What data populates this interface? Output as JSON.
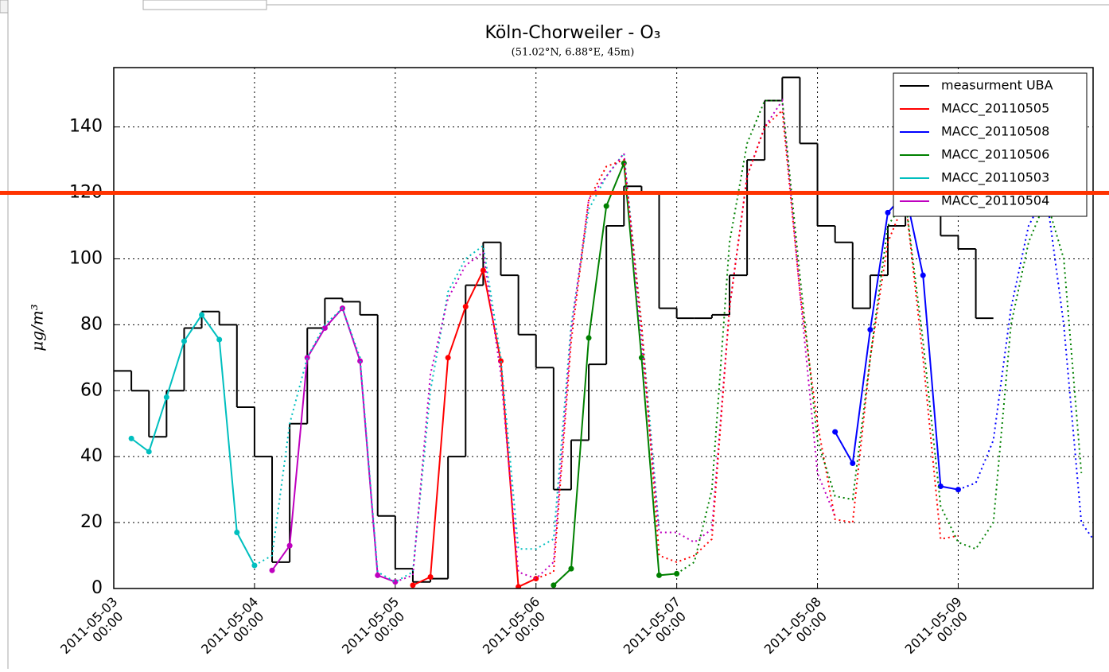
{
  "chart_data": {
    "type": "line",
    "title": "Köln-Chorweiler - O₃",
    "subtitle": "(51.02°N, 6.88°E, 45m)",
    "y_label": "μg/m³",
    "xlim": [
      "2011-05-03 00:00",
      "2011-05-09 23:00"
    ],
    "xticks": [
      "2011-05-03 00:00",
      "2011-05-04 00:00",
      "2011-05-05 00:00",
      "2011-05-06 00:00",
      "2011-05-07 00:00",
      "2011-05-08 00:00",
      "2011-05-09 00:00"
    ],
    "ylim": [
      0,
      158
    ],
    "yticks": [
      0,
      20,
      40,
      60,
      80,
      100,
      120,
      140
    ],
    "grid": true,
    "legend": "upper right",
    "hline": {
      "value": 120,
      "color": "#ff3300"
    },
    "series": [
      {
        "name": "measurment UBA",
        "color": "#000000",
        "drawstyle": "steps",
        "x": [
          "2011-05-03 00:00",
          "2011-05-03 03:00",
          "2011-05-03 06:00",
          "2011-05-03 09:00",
          "2011-05-03 12:00",
          "2011-05-03 15:00",
          "2011-05-03 18:00",
          "2011-05-03 21:00",
          "2011-05-04 00:00",
          "2011-05-04 03:00",
          "2011-05-04 06:00",
          "2011-05-04 09:00",
          "2011-05-04 12:00",
          "2011-05-04 15:00",
          "2011-05-04 18:00",
          "2011-05-04 21:00",
          "2011-05-05 00:00",
          "2011-05-05 03:00",
          "2011-05-05 06:00",
          "2011-05-05 09:00",
          "2011-05-05 12:00",
          "2011-05-05 15:00",
          "2011-05-05 18:00",
          "2011-05-05 21:00",
          "2011-05-06 00:00",
          "2011-05-06 03:00",
          "2011-05-06 06:00",
          "2011-05-06 09:00",
          "2011-05-06 12:00",
          "2011-05-06 15:00",
          "2011-05-06 18:00",
          "2011-05-06 21:00",
          "2011-05-07 00:00",
          "2011-05-07 03:00",
          "2011-05-07 06:00",
          "2011-05-07 09:00",
          "2011-05-07 12:00",
          "2011-05-07 15:00",
          "2011-05-07 18:00",
          "2011-05-07 21:00",
          "2011-05-08 00:00",
          "2011-05-08 03:00",
          "2011-05-08 06:00",
          "2011-05-08 09:00",
          "2011-05-08 12:00",
          "2011-05-08 15:00",
          "2011-05-08 18:00",
          "2011-05-08 21:00",
          "2011-05-09 00:00",
          "2011-05-09 03:00"
        ],
        "values": [
          66,
          60,
          46,
          60,
          79,
          84,
          80,
          55,
          40,
          8,
          50,
          79,
          88,
          87,
          83,
          22,
          6,
          2,
          3,
          40,
          92,
          105,
          95,
          77,
          67,
          30,
          45,
          68,
          110,
          122,
          120,
          85,
          82,
          82,
          83,
          95,
          130,
          148,
          155,
          135,
          110,
          105,
          85,
          95,
          110,
          128,
          115,
          107,
          103,
          82
        ]
      },
      {
        "name": "MACC_20110505",
        "color": "#ff0000",
        "marker": true,
        "x": [
          "2011-05-05 03:00",
          "2011-05-05 06:00",
          "2011-05-05 09:00",
          "2011-05-05 12:00",
          "2011-05-05 15:00",
          "2011-05-05 18:00",
          "2011-05-05 21:00",
          "2011-05-06 00:00"
        ],
        "values": [
          1,
          3.5,
          70,
          85.5,
          96.5,
          69,
          0.5,
          3
        ]
      },
      {
        "name": "MACC_20110508",
        "color": "#0000ff",
        "marker": true,
        "x": [
          "2011-05-08 03:00",
          "2011-05-08 06:00",
          "2011-05-08 09:00",
          "2011-05-08 12:00",
          "2011-05-08 15:00",
          "2011-05-08 18:00",
          "2011-05-08 21:00",
          "2011-05-09 00:00"
        ],
        "values": [
          47.5,
          38,
          78.5,
          114,
          120,
          95,
          31,
          30
        ]
      },
      {
        "name": "MACC_20110506",
        "color": "#008000",
        "marker": true,
        "x": [
          "2011-05-06 03:00",
          "2011-05-06 06:00",
          "2011-05-06 09:00",
          "2011-05-06 12:00",
          "2011-05-06 15:00",
          "2011-05-06 18:00",
          "2011-05-06 21:00",
          "2011-05-07 00:00"
        ],
        "values": [
          1,
          6,
          76,
          116,
          129,
          70,
          4,
          4.5
        ]
      },
      {
        "name": "MACC_20110503",
        "color": "#00bfbf",
        "marker": true,
        "x": [
          "2011-05-03 03:00",
          "2011-05-03 06:00",
          "2011-05-03 09:00",
          "2011-05-03 12:00",
          "2011-05-03 15:00",
          "2011-05-03 18:00",
          "2011-05-03 21:00",
          "2011-05-04 00:00"
        ],
        "values": [
          45.5,
          41.5,
          58,
          75,
          83,
          75.5,
          17,
          7
        ]
      },
      {
        "name": "MACC_20110504",
        "color": "#bf00bf",
        "marker": true,
        "x": [
          "2011-05-04 03:00",
          "2011-05-04 06:00",
          "2011-05-04 09:00",
          "2011-05-04 12:00",
          "2011-05-04 15:00",
          "2011-05-04 18:00",
          "2011-05-04 21:00",
          "2011-05-05 00:00"
        ],
        "values": [
          5.5,
          13,
          70,
          79,
          85,
          69,
          4,
          2
        ]
      },
      {
        "color": "#00bfbf",
        "linestyle": "dotted",
        "x": [
          "2011-05-04 00:00",
          "2011-05-04 03:00",
          "2011-05-04 06:00",
          "2011-05-04 09:00",
          "2011-05-04 12:00",
          "2011-05-04 15:00",
          "2011-05-04 18:00",
          "2011-05-04 21:00",
          "2011-05-05 00:00",
          "2011-05-05 03:00",
          "2011-05-05 06:00",
          "2011-05-05 09:00",
          "2011-05-05 12:00",
          "2011-05-05 15:00",
          "2011-05-05 18:00",
          "2011-05-05 21:00",
          "2011-05-06 00:00",
          "2011-05-06 03:00",
          "2011-05-06 06:00",
          "2011-05-06 09:00",
          "2011-05-06 12:00",
          "2011-05-06 15:00",
          "2011-05-06 18:00",
          "2011-05-06 21:00"
        ],
        "values": [
          7,
          10,
          50,
          70,
          80,
          85,
          70,
          5,
          2,
          5,
          60,
          90,
          100,
          104,
          70,
          12,
          12,
          15,
          80,
          115,
          125,
          132,
          80,
          18
        ]
      },
      {
        "color": "#bf00bf",
        "linestyle": "dotted",
        "x": [
          "2011-05-05 00:00",
          "2011-05-05 03:00",
          "2011-05-05 06:00",
          "2011-05-05 09:00",
          "2011-05-05 12:00",
          "2011-05-05 15:00",
          "2011-05-05 18:00",
          "2011-05-05 21:00",
          "2011-05-06 00:00",
          "2011-05-06 03:00",
          "2011-05-06 06:00",
          "2011-05-06 09:00",
          "2011-05-06 12:00",
          "2011-05-06 15:00",
          "2011-05-06 18:00",
          "2011-05-06 21:00",
          "2011-05-07 00:00",
          "2011-05-07 03:00",
          "2011-05-07 06:00",
          "2011-05-07 09:00",
          "2011-05-07 12:00",
          "2011-05-07 15:00",
          "2011-05-07 18:00",
          "2011-05-07 21:00",
          "2011-05-08 00:00",
          "2011-05-08 03:00"
        ],
        "values": [
          2,
          4,
          65,
          88,
          98,
          102,
          65,
          5,
          3,
          8,
          78,
          118,
          125,
          132,
          75,
          17,
          17,
          14,
          18,
          85,
          125,
          140,
          148,
          90,
          35,
          22
        ]
      },
      {
        "color": "#ff0000",
        "linestyle": "dotted",
        "x": [
          "2011-05-06 00:00",
          "2011-05-06 03:00",
          "2011-05-06 06:00",
          "2011-05-06 09:00",
          "2011-05-06 12:00",
          "2011-05-06 15:00",
          "2011-05-06 18:00",
          "2011-05-06 21:00",
          "2011-05-07 00:00",
          "2011-05-07 03:00",
          "2011-05-07 06:00",
          "2011-05-07 09:00",
          "2011-05-07 12:00",
          "2011-05-07 15:00",
          "2011-05-07 18:00",
          "2011-05-07 21:00",
          "2011-05-08 00:00",
          "2011-05-08 03:00",
          "2011-05-08 06:00",
          "2011-05-08 09:00",
          "2011-05-08 12:00",
          "2011-05-08 15:00",
          "2011-05-08 18:00",
          "2011-05-08 21:00",
          "2011-05-09 00:00"
        ],
        "values": [
          3,
          5,
          75,
          118,
          128,
          130,
          80,
          10,
          8,
          10,
          15,
          85,
          125,
          140,
          145,
          90,
          50,
          21,
          20,
          70,
          105,
          118,
          70,
          15,
          16
        ]
      },
      {
        "color": "#008000",
        "linestyle": "dotted",
        "x": [
          "2011-05-07 00:00",
          "2011-05-07 03:00",
          "2011-05-07 06:00",
          "2011-05-07 09:00",
          "2011-05-07 12:00",
          "2011-05-07 15:00",
          "2011-05-07 18:00",
          "2011-05-07 21:00",
          "2011-05-08 00:00",
          "2011-05-08 03:00",
          "2011-05-08 06:00",
          "2011-05-08 09:00",
          "2011-05-08 12:00",
          "2011-05-08 15:00",
          "2011-05-08 18:00",
          "2011-05-08 21:00",
          "2011-05-09 00:00",
          "2011-05-09 03:00",
          "2011-05-09 06:00",
          "2011-05-09 09:00",
          "2011-05-09 12:00",
          "2011-05-09 15:00",
          "2011-05-09 18:00",
          "2011-05-09 21:00"
        ],
        "values": [
          4.5,
          8,
          30,
          105,
          135,
          148,
          148,
          95,
          45,
          28,
          27,
          70,
          110,
          118,
          75,
          25,
          14,
          12,
          20,
          80,
          105,
          118,
          100,
          35
        ]
      },
      {
        "color": "#0000ff",
        "linestyle": "dotted",
        "x": [
          "2011-05-09 00:00",
          "2011-05-09 03:00",
          "2011-05-09 06:00",
          "2011-05-09 09:00",
          "2011-05-09 12:00",
          "2011-05-09 15:00",
          "2011-05-09 18:00",
          "2011-05-09 21:00",
          "2011-05-09 23:00"
        ],
        "values": [
          30,
          32,
          45,
          85,
          110,
          120,
          80,
          20,
          15
        ]
      }
    ]
  }
}
